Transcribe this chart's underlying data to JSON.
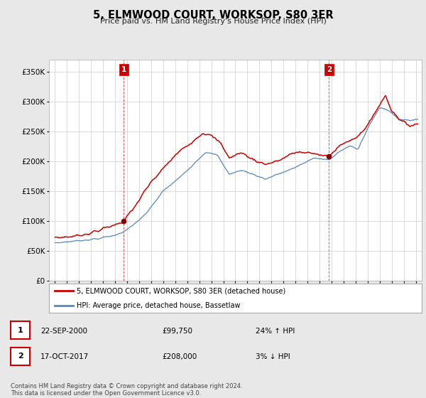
{
  "title": "5, ELMWOOD COURT, WORKSOP, S80 3ER",
  "subtitle": "Price paid vs. HM Land Registry's House Price Index (HPI)",
  "sale1_date": "22-SEP-2000",
  "sale1_price": 99750,
  "sale1_hpi_pct": "24% ↑ HPI",
  "sale2_date": "17-OCT-2017",
  "sale2_price": 208000,
  "sale2_hpi_pct": "3% ↓ HPI",
  "sale1_x": 2000.72,
  "sale2_x": 2017.79,
  "legend_line1": "5, ELMWOOD COURT, WORKSOP, S80 3ER (detached house)",
  "legend_line2": "HPI: Average price, detached house, Bassetlaw",
  "footer": "Contains HM Land Registry data © Crown copyright and database right 2024.\nThis data is licensed under the Open Government Licence v3.0.",
  "line_color_red": "#cc0000",
  "line_color_blue": "#5588bb",
  "background_color": "#e8e8e8",
  "plot_bg_color": "#ffffff",
  "grid_color": "#cccccc",
  "ylim": [
    0,
    370000
  ],
  "yticks": [
    0,
    50000,
    100000,
    150000,
    200000,
    250000,
    300000,
    350000
  ],
  "xlim": [
    1994.5,
    2025.5
  ],
  "xticks": [
    1995,
    1996,
    1997,
    1998,
    1999,
    2000,
    2001,
    2002,
    2003,
    2004,
    2005,
    2006,
    2007,
    2008,
    2009,
    2010,
    2011,
    2012,
    2013,
    2014,
    2015,
    2016,
    2017,
    2018,
    2019,
    2020,
    2021,
    2022,
    2023,
    2024,
    2025
  ]
}
